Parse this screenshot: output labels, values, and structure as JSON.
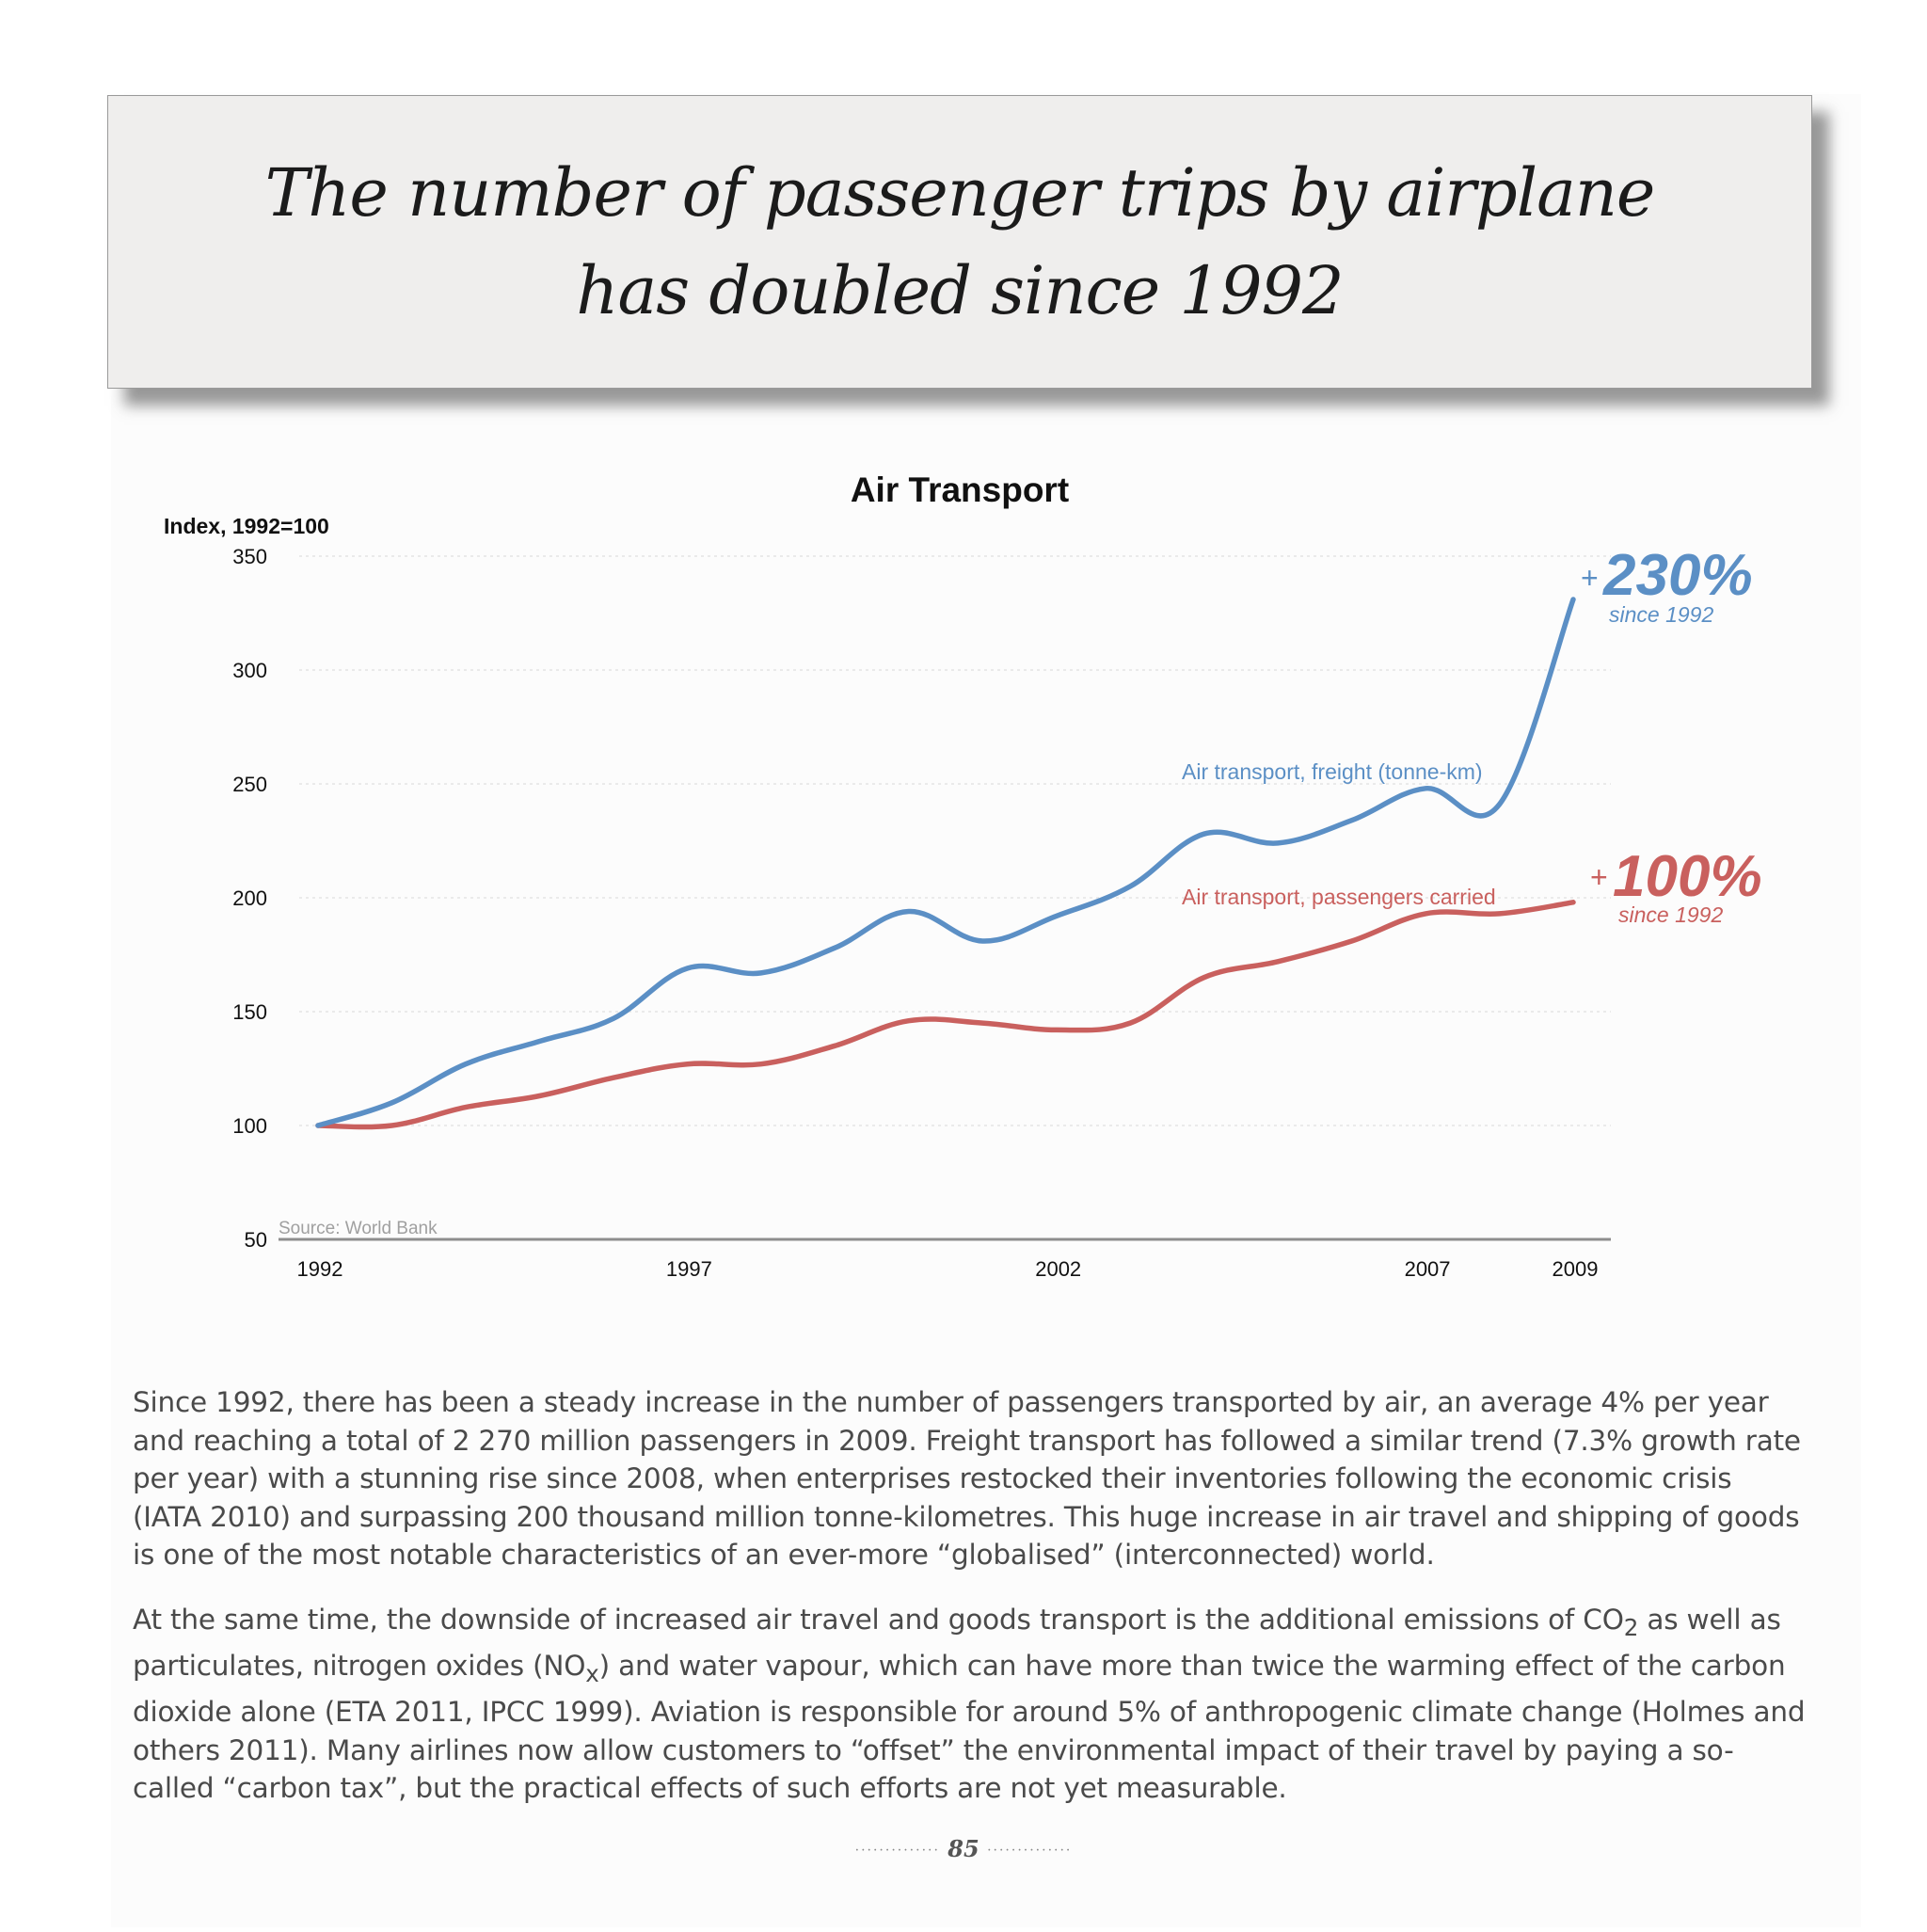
{
  "page": {
    "heading_line1": "The number of passenger trips by airplane",
    "heading_line2": "has doubled since 1992",
    "page_number": "85"
  },
  "chart_data": {
    "type": "line",
    "title": "Air Transport",
    "ylabel": "Index, 1992=100",
    "ylim": [
      50,
      350
    ],
    "yticks": [
      350,
      300,
      250,
      200,
      150,
      100,
      50
    ],
    "xlim": [
      1992,
      2009
    ],
    "xticks": [
      "1992",
      "1997",
      "2002",
      "2007",
      "2009"
    ],
    "grid": true,
    "source": "Source: World Bank",
    "series": [
      {
        "name": "Air transport, freight (tonne-km)",
        "color": "#5b8fc5",
        "x": [
          1992,
          1993,
          1994,
          1995,
          1996,
          1997,
          1998,
          1999,
          2000,
          2001,
          2002,
          2003,
          2004,
          2005,
          2006,
          2007,
          2008,
          2009
        ],
        "values": [
          100,
          110,
          127,
          137,
          147,
          169,
          167,
          178,
          194,
          181,
          192,
          205,
          228,
          224,
          234,
          248,
          241,
          331
        ],
        "annotation_value": "230%",
        "annotation_prefix": "+",
        "annotation_note": "since 1992"
      },
      {
        "name": "Air transport, passengers carried",
        "color": "#c9605e",
        "x": [
          1992,
          1993,
          1994,
          1995,
          1996,
          1997,
          1998,
          1999,
          2000,
          2001,
          2002,
          2003,
          2004,
          2005,
          2006,
          2007,
          2008,
          2009
        ],
        "values": [
          100,
          100,
          108,
          113,
          121,
          127,
          127,
          135,
          146,
          145,
          142,
          145,
          165,
          172,
          181,
          193,
          193,
          198
        ],
        "annotation_value": "100%",
        "annotation_prefix": "+",
        "annotation_note": "since 1992"
      }
    ]
  },
  "body": {
    "paragraph1": "Since 1992, there has been a steady increase in the number of passengers transported by air, an average 4% per year and reaching a total of 2 270 million passengers in 2009. Freight transport has followed a similar trend (7.3% growth rate per year) with a stunning rise since 2008, when enterprises restocked their inventories following the economic crisis (IATA 2010) and surpassing 200 thousand million tonne-kilometres. This huge increase in air travel and shipping of goods is one of the most notable characteristics of an ever-more “globalised” (interconnected) world.",
    "p2_part1": "At the same time, the downside of increased air travel and goods transport is the additional emissions of CO",
    "p2_sub1": "2",
    "p2_part2": " as well as particulates, nitrogen oxides (NO",
    "p2_sub2": "x",
    "p2_part3": ") and water vapour, which can have more than twice the warming effect of the carbon dioxide alone (ETA 2011, IPCC 1999). Aviation is responsible for around 5% of anthropogenic climate change (Holmes and others 2011). Many airlines now allow customers to “offset” the environmental impact of their travel by paying a so-called “carbon tax”, but the practical effects of such efforts are not yet measurable."
  }
}
